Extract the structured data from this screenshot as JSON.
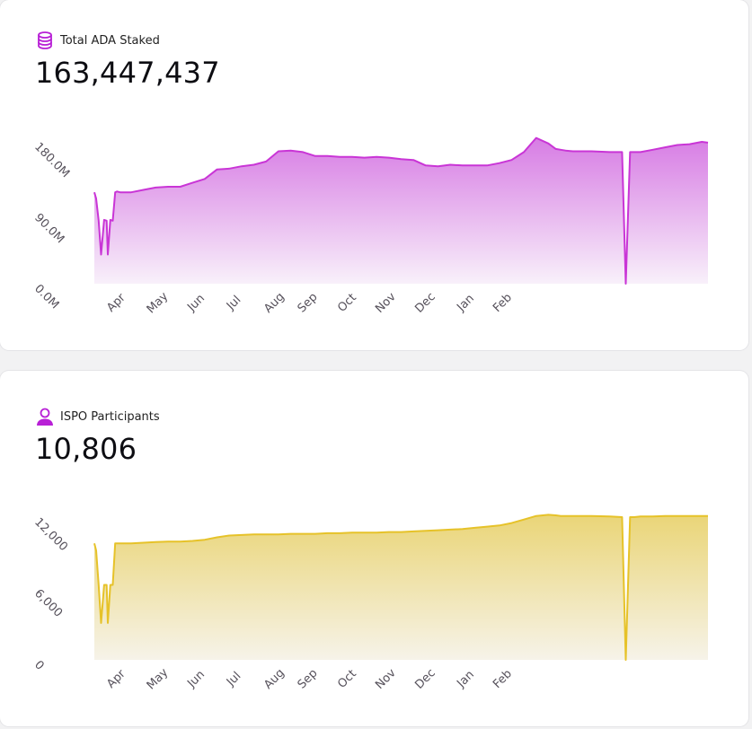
{
  "cards": {
    "staked": {
      "label": "Total ADA Staked",
      "value": "163,447,437",
      "icon": "coins-stack-icon",
      "color": "#c935d6"
    },
    "participants": {
      "label": "ISPO Participants",
      "value": "10,806",
      "icon": "user-icon",
      "color": "#e6c229"
    }
  },
  "chart_data": [
    {
      "type": "area",
      "title": "",
      "xlabel": "",
      "ylabel": "",
      "x_tick_labels": [
        "Apr",
        "May",
        "Jun",
        "Jul",
        "Aug",
        "Sep",
        "Oct",
        "Nov",
        "Dec",
        "Jan",
        "Feb"
      ],
      "y_tick_labels": [
        "0.0M",
        "90.0M",
        "180.0M"
      ],
      "ylim": [
        0,
        180000000
      ],
      "grid": false,
      "legend": "none",
      "x": [
        0,
        0.3,
        0.7,
        1.1,
        1.6,
        2.0,
        2.2,
        2.6,
        3.0,
        3.4,
        3.7,
        4.2,
        6,
        8,
        10,
        12,
        14,
        16,
        18,
        20,
        22,
        24,
        26,
        28,
        30,
        32,
        34,
        36,
        38,
        40,
        42,
        44,
        46,
        48,
        50,
        52,
        54,
        56,
        58,
        60,
        62,
        64,
        66,
        68,
        70,
        72,
        74,
        75.2,
        76,
        76.8,
        78,
        81,
        84,
        86,
        86.6,
        87.3,
        88,
        89,
        91,
        93,
        95,
        97,
        99,
        100
      ],
      "values": [
        116000000,
        108000000,
        80000000,
        37000000,
        81000000,
        80000000,
        37000000,
        81000000,
        80000000,
        116000000,
        117000000,
        116000000,
        116000000,
        119000000,
        122000000,
        123000000,
        123000000,
        128000000,
        133000000,
        145000000,
        146000000,
        149000000,
        151000000,
        155000000,
        168000000,
        169000000,
        167000000,
        162000000,
        162000000,
        161000000,
        161000000,
        160000000,
        161000000,
        160000000,
        158000000,
        157000000,
        150000000,
        149000000,
        151000000,
        150000000,
        150000000,
        150000000,
        153000000,
        157000000,
        167000000,
        185000000,
        178000000,
        171000000,
        170000000,
        169000000,
        168000000,
        168000000,
        167000000,
        167000000,
        0,
        167000000,
        167000000,
        167000000,
        170000000,
        173000000,
        176000000,
        177000000,
        180000000,
        179000000
      ]
    },
    {
      "type": "area",
      "title": "",
      "xlabel": "",
      "ylabel": "",
      "x_tick_labels": [
        "Apr",
        "May",
        "Jun",
        "Jul",
        "Aug",
        "Sep",
        "Oct",
        "Nov",
        "Dec",
        "Jan",
        "Feb"
      ],
      "y_tick_labels": [
        "0",
        "6,000",
        "12,000"
      ],
      "ylim": [
        0,
        12000
      ],
      "grid": false,
      "legend": "none",
      "x": [
        0,
        0.3,
        0.7,
        1.1,
        1.6,
        2.0,
        2.2,
        2.6,
        3.0,
        3.4,
        3.7,
        4.2,
        6,
        8,
        10,
        12,
        14,
        16,
        18,
        20,
        22,
        24,
        26,
        28,
        30,
        32,
        34,
        36,
        38,
        40,
        42,
        44,
        46,
        48,
        50,
        52,
        54,
        56,
        58,
        60,
        62,
        64,
        66,
        68,
        70,
        72,
        74,
        75.2,
        76,
        76.8,
        78,
        81,
        84,
        86,
        86.6,
        87.3,
        88,
        89,
        91,
        93,
        95,
        97,
        99,
        100
      ],
      "values": [
        9800,
        9200,
        6300,
        3100,
        6300,
        6300,
        3100,
        6300,
        6300,
        9800,
        9800,
        9800,
        9800,
        9850,
        9900,
        9950,
        9950,
        10000,
        10100,
        10300,
        10450,
        10500,
        10550,
        10550,
        10550,
        10600,
        10600,
        10600,
        10650,
        10650,
        10700,
        10700,
        10700,
        10750,
        10750,
        10800,
        10850,
        10900,
        10950,
        11000,
        11100,
        11200,
        11300,
        11500,
        11800,
        12100,
        12200,
        12150,
        12100,
        12100,
        12100,
        12100,
        12050,
        12000,
        0,
        12000,
        12000,
        12050,
        12050,
        12100,
        12100,
        12100,
        12100,
        12100
      ]
    }
  ]
}
